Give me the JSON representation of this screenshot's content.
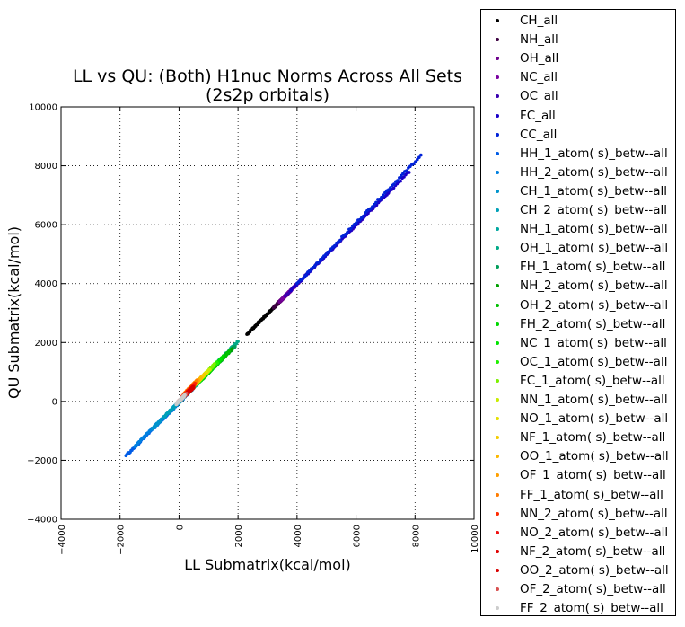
{
  "chart_data": {
    "type": "scatter",
    "title_lines": [
      "LL vs QU: (Both) H1nuc Norms Across All Sets",
      "(2s2p orbitals)"
    ],
    "xlabel": "LL Submatrix(kcal/mol)",
    "ylabel": "QU Submatrix(kcal/mol)",
    "xlim": [
      -4000,
      10000
    ],
    "ylim": [
      -4000,
      10000
    ],
    "xticks": [
      -4000,
      -2000,
      0,
      2000,
      4000,
      6000,
      8000,
      10000
    ],
    "yticks": [
      -4000,
      -2000,
      0,
      2000,
      4000,
      6000,
      8000,
      10000
    ],
    "xtick_labels": [
      "−4000",
      "−2000",
      "0",
      "2000",
      "4000",
      "6000",
      "8000",
      "10000"
    ],
    "ytick_labels": [
      "−4000",
      "−2000",
      "0",
      "2000",
      "4000",
      "6000",
      "8000",
      "10000"
    ],
    "grid": true,
    "legend_placement": "outside-right",
    "series": [
      {
        "name": "CH_all",
        "color": "#000000",
        "x_range": [
          2300,
          3500
        ],
        "y_range": [
          2280,
          3470
        ]
      },
      {
        "name": "NH_all",
        "color": "#3c0040",
        "x_range": [
          3200,
          3700
        ],
        "y_range": [
          3180,
          3680
        ]
      },
      {
        "name": "OH_all",
        "color": "#6e008c",
        "x_range": [
          3400,
          3800
        ],
        "y_range": [
          3380,
          3780
        ]
      },
      {
        "name": "NC_all",
        "color": "#7a00a0",
        "x_range": [
          3500,
          4100
        ],
        "y_range": [
          3480,
          4080
        ]
      },
      {
        "name": "OC_all",
        "color": "#3a00b0",
        "x_range": [
          3600,
          7200
        ],
        "y_range": [
          3580,
          7200
        ]
      },
      {
        "name": "FC_all",
        "color": "#1a00c8",
        "x_range": [
          3800,
          7800
        ],
        "y_range": [
          3780,
          7800
        ]
      },
      {
        "name": "CC_all",
        "color": "#0022d8",
        "x_range": [
          4000,
          8200
        ],
        "y_range": [
          3980,
          8350
        ]
      },
      {
        "name": "HH_1_atom( s)_betw--all",
        "color": "#005ce6",
        "x_range": [
          -1800,
          200
        ],
        "y_range": [
          -1850,
          150
        ]
      },
      {
        "name": "HH_2_atom( s)_betw--all",
        "color": "#0080e0",
        "x_range": [
          -1500,
          500
        ],
        "y_range": [
          -1520,
          470
        ]
      },
      {
        "name": "CH_1_atom( s)_betw--all",
        "color": "#0094cc",
        "x_range": [
          -900,
          800
        ],
        "y_range": [
          -920,
          780
        ]
      },
      {
        "name": "CH_2_atom( s)_betw--all",
        "color": "#00a0b8",
        "x_range": [
          -500,
          1200
        ],
        "y_range": [
          -520,
          1180
        ]
      },
      {
        "name": "NH_1_atom( s)_betw--all",
        "color": "#00a8a0",
        "x_range": [
          0,
          1600
        ],
        "y_range": [
          -20,
          1580
        ]
      },
      {
        "name": "OH_1_atom( s)_betw--all",
        "color": "#00aa88",
        "x_range": [
          300,
          2000
        ],
        "y_range": [
          280,
          2050
        ]
      },
      {
        "name": "FH_1_atom( s)_betw--all",
        "color": "#009e5a",
        "x_range": [
          600,
          1900
        ],
        "y_range": [
          580,
          1880
        ]
      },
      {
        "name": "NH_2_atom( s)_betw--all",
        "color": "#00a000",
        "x_range": [
          800,
          1800
        ],
        "y_range": [
          780,
          1780
        ]
      },
      {
        "name": "OH_2_atom( s)_betw--all",
        "color": "#00c000",
        "x_range": [
          900,
          1700
        ],
        "y_range": [
          880,
          1700
        ]
      },
      {
        "name": "FH_2_atom( s)_betw--all",
        "color": "#00d800",
        "x_range": [
          700,
          1500
        ],
        "y_range": [
          690,
          1520
        ]
      },
      {
        "name": "NC_1_atom( s)_betw--all",
        "color": "#00e400",
        "x_range": [
          600,
          1400
        ],
        "y_range": [
          600,
          1420
        ]
      },
      {
        "name": "OC_1_atom( s)_betw--all",
        "color": "#20f000",
        "x_range": [
          500,
          1300
        ],
        "y_range": [
          520,
          1330
        ]
      },
      {
        "name": "FC_1_atom( s)_betw--all",
        "color": "#7cf000",
        "x_range": [
          400,
          1200
        ],
        "y_range": [
          430,
          1250
        ]
      },
      {
        "name": "NN_1_atom( s)_betw--all",
        "color": "#c8ec00",
        "x_range": [
          350,
          1050
        ],
        "y_range": [
          380,
          1100
        ]
      },
      {
        "name": "NO_1_atom( s)_betw--all",
        "color": "#e4e000",
        "x_range": [
          300,
          950
        ],
        "y_range": [
          340,
          1000
        ]
      },
      {
        "name": "NF_1_atom( s)_betw--all",
        "color": "#f4cc00",
        "x_range": [
          250,
          850
        ],
        "y_range": [
          300,
          900
        ]
      },
      {
        "name": "OO_1_atom( s)_betw--all",
        "color": "#fcb800",
        "x_range": [
          200,
          750
        ],
        "y_range": [
          260,
          820
        ]
      },
      {
        "name": "OF_1_atom( s)_betw--all",
        "color": "#ffa000",
        "x_range": [
          150,
          650
        ],
        "y_range": [
          220,
          740
        ]
      },
      {
        "name": "FF_1_atom( s)_betw--all",
        "color": "#ff7c00",
        "x_range": [
          150,
          600
        ],
        "y_range": [
          230,
          700
        ]
      },
      {
        "name": "NN_2_atom( s)_betw--all",
        "color": "#ff2a00",
        "x_range": [
          100,
          550
        ],
        "y_range": [
          150,
          600
        ]
      },
      {
        "name": "NO_2_atom( s)_betw--all",
        "color": "#f01010",
        "x_range": [
          100,
          500
        ],
        "y_range": [
          120,
          520
        ]
      },
      {
        "name": "NF_2_atom( s)_betw--all",
        "color": "#e00000",
        "x_range": [
          150,
          450
        ],
        "y_range": [
          160,
          460
        ]
      },
      {
        "name": "OO_2_atom( s)_betw--all",
        "color": "#d80000",
        "x_range": [
          200,
          500
        ],
        "y_range": [
          200,
          480
        ]
      },
      {
        "name": "OF_2_atom( s)_betw--all",
        "color": "#d85050",
        "x_range": [
          -50,
          250
        ],
        "y_range": [
          -40,
          260
        ]
      },
      {
        "name": "FF_2_atom( s)_betw--all",
        "color": "#cccccc",
        "x_range": [
          -100,
          200
        ],
        "y_range": [
          -90,
          210
        ]
      }
    ]
  }
}
